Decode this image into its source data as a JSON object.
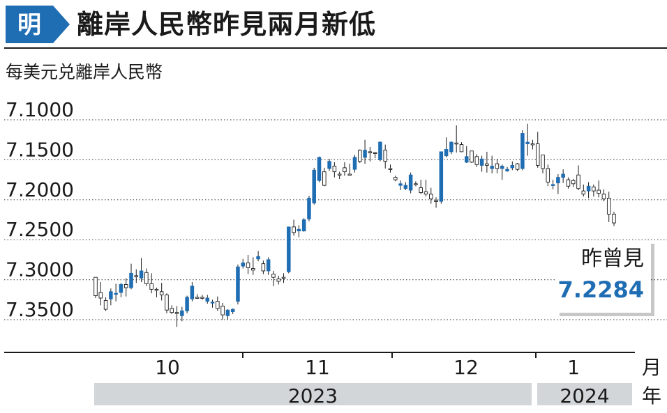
{
  "header": {
    "logo_text": "明",
    "title": "離岸人民幣昨見兩月新低"
  },
  "unit_label": "每美元兑離岸人民幣",
  "callout": {
    "label": "昨曾見",
    "value": "7.2284"
  },
  "colors": {
    "up": "#1f6db3",
    "down": "#ffffff",
    "callout_value": "#1f6db3",
    "logo": "#1f6db3",
    "year_band": "#d3d6d9"
  },
  "chart_data": {
    "type": "candlestick",
    "y_axis": {
      "inverted": true,
      "ticks": [
        "7.1000",
        "7.1500",
        "7.2000",
        "7.2500",
        "7.3000",
        "7.3500"
      ],
      "ylim": [
        7.1,
        7.35
      ]
    },
    "x_axis": {
      "month_ticks": [
        "10",
        "11",
        "12",
        "1"
      ],
      "month_unit": "月",
      "years": [
        "2023",
        "2024"
      ],
      "year_unit": "年"
    },
    "grid": "horizontal dotted",
    "ohlc": [
      [
        7.297,
        7.297,
        7.323,
        7.32
      ],
      [
        7.316,
        7.303,
        7.332,
        7.323
      ],
      [
        7.326,
        7.322,
        7.339,
        7.337
      ],
      [
        7.324,
        7.311,
        7.332,
        7.315
      ],
      [
        7.318,
        7.305,
        7.327,
        7.317
      ],
      [
        7.316,
        7.304,
        7.322,
        7.306
      ],
      [
        7.306,
        7.298,
        7.321,
        7.31
      ],
      [
        7.31,
        7.28,
        7.312,
        7.292
      ],
      [
        7.295,
        7.287,
        7.304,
        7.296
      ],
      [
        7.298,
        7.273,
        7.303,
        7.289
      ],
      [
        7.291,
        7.286,
        7.308,
        7.305
      ],
      [
        7.305,
        7.292,
        7.317,
        7.312
      ],
      [
        7.312,
        7.31,
        7.322,
        7.313
      ],
      [
        7.315,
        7.304,
        7.326,
        7.319
      ],
      [
        7.319,
        7.317,
        7.342,
        7.338
      ],
      [
        7.336,
        7.332,
        7.343,
        7.341
      ],
      [
        7.341,
        7.333,
        7.359,
        7.342
      ],
      [
        7.345,
        7.334,
        7.352,
        7.339
      ],
      [
        7.339,
        7.32,
        7.342,
        7.322
      ],
      [
        7.324,
        7.303,
        7.327,
        7.308
      ],
      [
        7.322,
        7.318,
        7.324,
        7.322
      ],
      [
        7.322,
        7.319,
        7.325,
        7.323
      ],
      [
        7.327,
        7.319,
        7.33,
        7.323
      ],
      [
        7.329,
        7.325,
        7.335,
        7.328
      ],
      [
        7.327,
        7.321,
        7.339,
        7.336
      ],
      [
        7.333,
        7.329,
        7.35,
        7.344
      ],
      [
        7.345,
        7.337,
        7.35,
        7.338
      ],
      [
        7.34,
        7.336,
        7.343,
        7.337
      ],
      [
        7.327,
        7.281,
        7.331,
        7.284
      ],
      [
        7.283,
        7.274,
        7.286,
        7.279
      ],
      [
        7.279,
        7.269,
        7.293,
        7.285
      ],
      [
        7.286,
        7.272,
        7.294,
        7.288
      ],
      [
        7.274,
        7.264,
        7.277,
        7.271
      ],
      [
        7.28,
        7.276,
        7.293,
        7.289
      ],
      [
        7.289,
        7.272,
        7.294,
        7.275
      ],
      [
        7.293,
        7.289,
        7.308,
        7.297
      ],
      [
        7.299,
        7.295,
        7.306,
        7.302
      ],
      [
        7.297,
        7.292,
        7.304,
        7.298
      ],
      [
        7.29,
        7.234,
        7.292,
        7.234
      ],
      [
        7.234,
        7.225,
        7.245,
        7.241
      ],
      [
        7.239,
        7.232,
        7.247,
        7.237
      ],
      [
        7.239,
        7.223,
        7.24,
        7.225
      ],
      [
        7.224,
        7.195,
        7.227,
        7.198
      ],
      [
        7.204,
        7.16,
        7.206,
        7.163
      ],
      [
        7.176,
        7.146,
        7.178,
        7.147
      ],
      [
        7.165,
        7.16,
        7.183,
        7.182
      ],
      [
        7.161,
        7.149,
        7.164,
        7.152
      ],
      [
        7.158,
        7.153,
        7.172,
        7.165
      ],
      [
        7.168,
        7.165,
        7.174,
        7.169
      ],
      [
        7.16,
        7.153,
        7.17,
        7.165
      ],
      [
        7.168,
        7.155,
        7.17,
        7.168
      ],
      [
        7.162,
        7.144,
        7.166,
        7.147
      ],
      [
        7.138,
        7.137,
        7.154,
        7.152
      ],
      [
        7.147,
        7.125,
        7.155,
        7.138
      ],
      [
        7.14,
        7.134,
        7.152,
        7.14
      ],
      [
        7.141,
        7.14,
        7.148,
        7.142
      ],
      [
        7.15,
        7.127,
        7.152,
        7.128
      ],
      [
        7.138,
        7.131,
        7.161,
        7.152
      ],
      [
        7.161,
        7.156,
        7.166,
        7.162
      ],
      [
        7.172,
        7.17,
        7.177,
        7.175
      ],
      [
        7.182,
        7.176,
        7.188,
        7.18
      ],
      [
        7.186,
        7.178,
        7.188,
        7.182
      ],
      [
        7.188,
        7.166,
        7.192,
        7.169
      ],
      [
        7.18,
        7.177,
        7.183,
        7.181
      ],
      [
        7.185,
        7.175,
        7.193,
        7.191
      ],
      [
        7.19,
        7.175,
        7.196,
        7.193
      ],
      [
        7.193,
        7.185,
        7.205,
        7.199
      ],
      [
        7.201,
        7.197,
        7.21,
        7.202
      ],
      [
        7.202,
        7.14,
        7.205,
        7.14
      ],
      [
        7.145,
        7.122,
        7.147,
        7.137
      ],
      [
        7.14,
        7.127,
        7.143,
        7.128
      ],
      [
        7.129,
        7.107,
        7.141,
        7.13
      ],
      [
        7.131,
        7.128,
        7.14,
        7.14
      ],
      [
        7.153,
        7.133,
        7.154,
        7.146
      ],
      [
        7.139,
        7.151,
        7.154,
        7.153
      ],
      [
        7.146,
        7.143,
        7.159,
        7.156
      ],
      [
        7.157,
        7.145,
        7.165,
        7.149
      ],
      [
        7.155,
        7.14,
        7.166,
        7.157
      ],
      [
        7.161,
        7.145,
        7.167,
        7.158
      ],
      [
        7.155,
        7.149,
        7.167,
        7.161
      ],
      [
        7.161,
        7.156,
        7.175,
        7.158
      ],
      [
        7.164,
        7.159,
        7.165,
        7.162
      ],
      [
        7.16,
        7.152,
        7.163,
        7.157
      ],
      [
        7.155,
        7.154,
        7.164,
        7.162
      ],
      [
        7.161,
        7.113,
        7.163,
        7.117
      ],
      [
        7.13,
        7.105,
        7.145,
        7.128
      ],
      [
        7.13,
        7.125,
        7.137,
        7.131
      ],
      [
        7.13,
        7.115,
        7.16,
        7.157
      ],
      [
        7.144,
        7.148,
        7.167,
        7.161
      ],
      [
        7.161,
        7.156,
        7.183,
        7.178
      ],
      [
        7.182,
        7.175,
        7.187,
        7.181
      ],
      [
        7.179,
        7.168,
        7.193,
        7.172
      ],
      [
        7.172,
        7.162,
        7.179,
        7.168
      ],
      [
        7.175,
        7.172,
        7.186,
        7.183
      ],
      [
        7.176,
        7.174,
        7.184,
        7.18
      ],
      [
        7.169,
        7.157,
        7.188,
        7.186
      ],
      [
        7.189,
        7.181,
        7.196,
        7.193
      ],
      [
        7.189,
        7.178,
        7.198,
        7.183
      ],
      [
        7.184,
        7.181,
        7.196,
        7.189
      ],
      [
        7.188,
        7.176,
        7.197,
        7.192
      ],
      [
        7.193,
        7.187,
        7.202,
        7.199
      ],
      [
        7.198,
        7.19,
        7.228,
        7.218
      ],
      [
        7.218,
        7.215,
        7.233,
        7.229
      ]
    ]
  }
}
